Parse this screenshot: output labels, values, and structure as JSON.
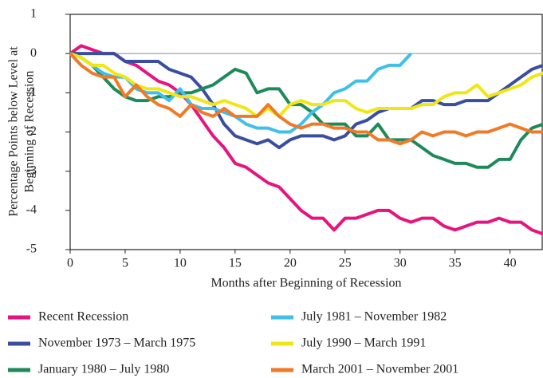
{
  "chart_data": {
    "type": "line",
    "x_label": "Months after Beginning of Recession",
    "y_label": [
      "Percentage Points below Level at",
      "Beginning of Recession"
    ],
    "x": [
      0,
      1,
      2,
      3,
      4,
      5,
      6,
      7,
      8,
      9,
      10,
      11,
      12,
      13,
      14,
      15,
      16,
      17,
      18,
      19,
      20,
      21,
      22,
      23,
      24,
      25,
      26,
      27,
      28,
      29,
      30,
      31,
      32,
      33,
      34,
      35,
      36,
      37,
      38,
      39,
      40,
      41,
      42,
      43
    ],
    "xlim": [
      0,
      43
    ],
    "xticks": [
      0,
      5,
      10,
      15,
      20,
      25,
      30,
      35,
      40
    ],
    "ylim": [
      -5,
      1
    ],
    "yticks": [
      -5,
      -4,
      -3,
      -2,
      -1,
      0,
      1
    ],
    "series": [
      {
        "name": "Recent Recession",
        "color": "#e6147e",
        "values": [
          0,
          0.2,
          0.1,
          0,
          0,
          -0.2,
          -0.3,
          -0.5,
          -0.7,
          -0.8,
          -1.0,
          -1.3,
          -1.7,
          -2.1,
          -2.4,
          -2.8,
          -2.9,
          -3.1,
          -3.3,
          -3.4,
          -3.7,
          -4.0,
          -4.2,
          -4.2,
          -4.5,
          -4.2,
          -4.2,
          -4.1,
          -4.0,
          -4.0,
          -4.2,
          -4.3,
          -4.2,
          -4.2,
          -4.4,
          -4.5,
          -4.4,
          -4.3,
          -4.3,
          -4.2,
          -4.3,
          -4.3,
          -4.5,
          -4.6
        ]
      },
      {
        "name": "November 1973 – March 1975",
        "color": "#3a4ea0",
        "values": [
          0,
          0,
          0,
          0,
          0,
          -0.2,
          -0.2,
          -0.2,
          -0.2,
          -0.4,
          -0.5,
          -0.6,
          -0.9,
          -1.3,
          -1.8,
          -2.1,
          -2.2,
          -2.3,
          -2.2,
          -2.4,
          -2.2,
          -2.1,
          -2.1,
          -2.1,
          -2.2,
          -2.1,
          -1.8,
          -1.7,
          -1.5,
          -1.4,
          -1.4,
          -1.4,
          -1.2,
          -1.2,
          -1.3,
          -1.3,
          -1.2,
          -1.2,
          -1.2,
          -1.0,
          -0.8,
          -0.6,
          -0.4,
          -0.3
        ]
      },
      {
        "name": "January 1980 – July 1980",
        "color": "#1e8a5a",
        "values": [
          0,
          -0.1,
          -0.3,
          -0.6,
          -0.9,
          -1.1,
          -1.2,
          -1.2,
          -1.1,
          -1.1,
          -1.0,
          -1.0,
          -0.9,
          -0.8,
          -0.6,
          -0.4,
          -0.5,
          -1.0,
          -0.9,
          -0.9,
          -1.3,
          -1.3,
          -1.5,
          -1.8,
          -1.8,
          -1.8,
          -2.1,
          -2.1,
          -1.8,
          -2.2,
          -2.2,
          -2.2,
          -2.4,
          -2.6,
          -2.7,
          -2.8,
          -2.8,
          -2.9,
          -2.9,
          -2.7,
          -2.7,
          -2.2,
          -1.9,
          -1.8
        ]
      },
      {
        "name": "July 1981 – November 1982",
        "color": "#3fbfea",
        "values": [
          0,
          -0.1,
          -0.3,
          -0.5,
          -0.6,
          -0.6,
          -0.9,
          -1.0,
          -1.0,
          -1.2,
          -0.9,
          -1.3,
          -1.4,
          -1.4,
          -1.5,
          -1.6,
          -1.8,
          -1.9,
          -1.9,
          -2.0,
          -2.0,
          -1.8,
          -1.5,
          -1.3,
          -1.0,
          -0.9,
          -0.7,
          -0.7,
          -0.4,
          -0.3,
          -0.3,
          0,
          null,
          null,
          null,
          null,
          null,
          null,
          null,
          null,
          null,
          null,
          null,
          null
        ]
      },
      {
        "name": "July 1990 – March 1991",
        "color": "#f0e614",
        "values": [
          0,
          -0.1,
          -0.3,
          -0.3,
          -0.5,
          -0.6,
          -0.8,
          -0.9,
          -0.9,
          -1.0,
          -1.1,
          -1.1,
          -1.2,
          -1.3,
          -1.2,
          -1.3,
          -1.4,
          -1.6,
          -1.4,
          -1.6,
          -1.3,
          -1.2,
          -1.3,
          -1.3,
          -1.2,
          -1.2,
          -1.4,
          -1.5,
          -1.4,
          -1.4,
          -1.4,
          -1.4,
          -1.3,
          -1.3,
          -1.1,
          -1.0,
          -1.0,
          -0.8,
          -1.1,
          -1.0,
          -0.9,
          -0.8,
          -0.6,
          -0.5
        ]
      },
      {
        "name": "March 2001 – November 2001",
        "color": "#f07a28",
        "values": [
          0,
          -0.3,
          -0.5,
          -0.6,
          -0.6,
          -1.1,
          -0.8,
          -1.1,
          -1.3,
          -1.4,
          -1.6,
          -1.3,
          -1.5,
          -1.6,
          -1.4,
          -1.6,
          -1.6,
          -1.6,
          -1.3,
          -1.6,
          -1.8,
          -1.9,
          -1.8,
          -1.8,
          -1.9,
          -1.9,
          -2.0,
          -2.0,
          -2.2,
          -2.2,
          -2.3,
          -2.2,
          -2.0,
          -2.1,
          -2.0,
          -2.0,
          -2.1,
          -2.0,
          -2.0,
          -1.9,
          -1.8,
          -1.9,
          -2.0,
          -2.0
        ]
      }
    ]
  }
}
